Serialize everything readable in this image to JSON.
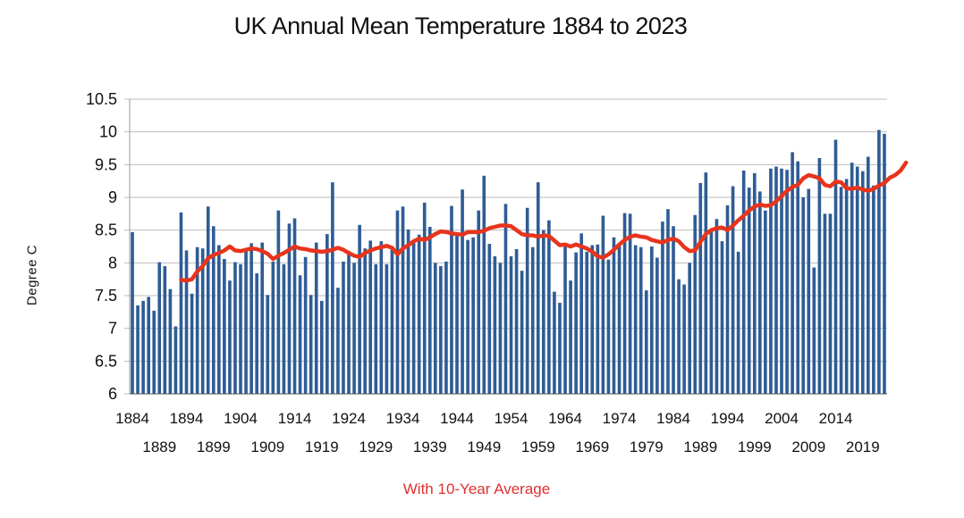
{
  "chart_data": {
    "type": "bar",
    "title": "UK Annual Mean Temperature 1884 to 2023",
    "ylabel": "Degree C",
    "caption": "With 10-Year Average",
    "ylim": [
      6,
      10.5
    ],
    "yticks": [
      "6",
      "6.5",
      "7",
      "7.5",
      "8",
      "8.5",
      "9",
      "9.5",
      "10",
      "10.5"
    ],
    "xtick_labels_row1": [
      "1884",
      "1894",
      "1904",
      "1914",
      "1924",
      "1934",
      "1944",
      "1954",
      "1964",
      "1974",
      "1984",
      "1994",
      "2004",
      "2014"
    ],
    "xtick_labels_row2": [
      "1889",
      "1899",
      "1909",
      "1919",
      "1929",
      "1939",
      "1949",
      "1959",
      "1969",
      "1979",
      "1989",
      "1999",
      "2009",
      "2019"
    ],
    "grid": true,
    "colors": {
      "bars": "#2F5C95",
      "average_line": "#E8341C",
      "grid": "#BDBDBD",
      "caption": "#E03030"
    },
    "series": [
      {
        "x_start": 1884,
        "x_end": 2023,
        "values": [
          8.47,
          7.35,
          7.42,
          7.48,
          7.27,
          8.01,
          7.95,
          7.6,
          7.03,
          8.77,
          8.19,
          7.53,
          8.24,
          8.22,
          8.86,
          8.56,
          8.27,
          8.06,
          7.73,
          8.01,
          7.98,
          8.22,
          8.3,
          7.84,
          8.31,
          7.51,
          8.02,
          8.8,
          7.98,
          8.6,
          8.68,
          7.81,
          8.09,
          7.51,
          8.31,
          7.42,
          8.44,
          9.23,
          7.62,
          8.02,
          8.18,
          8.0,
          8.58,
          8.22,
          8.34,
          7.98,
          8.33,
          7.98,
          8.2,
          8.8,
          8.86,
          8.51,
          8.31,
          8.43,
          8.92,
          8.55,
          8.0,
          7.95,
          8.02,
          8.87,
          8.42,
          9.12,
          8.35,
          8.39,
          8.8,
          9.33,
          8.29,
          8.1,
          8.0,
          8.9,
          8.1,
          8.21,
          7.88,
          8.84,
          8.24,
          9.23,
          8.5,
          8.65,
          7.56,
          7.39,
          8.25,
          7.73,
          8.16,
          8.45,
          8.17,
          8.27,
          8.28,
          8.72,
          8.05,
          8.39,
          8.26,
          8.76,
          8.75,
          8.27,
          8.24,
          7.58,
          8.25,
          8.08,
          8.63,
          8.82,
          8.56,
          7.75,
          7.67,
          8.0,
          8.73,
          9.22,
          9.38,
          8.51,
          8.67,
          8.33,
          8.88,
          9.17,
          8.17,
          9.41,
          9.15,
          9.37,
          9.09,
          8.8,
          9.44,
          9.47,
          9.44,
          9.42,
          9.69,
          9.55,
          9.0,
          9.13,
          7.93,
          9.6,
          8.75,
          8.75,
          9.88,
          9.16,
          9.28,
          9.53,
          9.47,
          9.4,
          9.62,
          9.18,
          10.03,
          9.97
        ]
      },
      {
        "name": "10-Year Average",
        "x_start": 1893,
        "x_end": 2023,
        "values": [
          7.74,
          7.73,
          7.75,
          7.87,
          7.95,
          8.07,
          8.12,
          8.15,
          8.19,
          8.25,
          8.19,
          8.18,
          8.2,
          8.22,
          8.21,
          8.18,
          8.14,
          8.06,
          8.11,
          8.15,
          8.2,
          8.25,
          8.22,
          8.21,
          8.19,
          8.18,
          8.17,
          8.18,
          8.2,
          8.23,
          8.2,
          8.15,
          8.11,
          8.09,
          8.15,
          8.19,
          8.22,
          8.24,
          8.26,
          8.23,
          8.13,
          8.22,
          8.27,
          8.33,
          8.37,
          8.35,
          8.39,
          8.44,
          8.48,
          8.47,
          8.45,
          8.44,
          8.43,
          8.47,
          8.47,
          8.47,
          8.49,
          8.53,
          8.55,
          8.57,
          8.57,
          8.56,
          8.5,
          8.44,
          8.42,
          8.42,
          8.4,
          8.42,
          8.41,
          8.34,
          8.27,
          8.28,
          8.25,
          8.28,
          8.25,
          8.22,
          8.17,
          8.1,
          8.08,
          8.13,
          8.2,
          8.28,
          8.35,
          8.4,
          8.42,
          8.4,
          8.39,
          8.35,
          8.33,
          8.31,
          8.35,
          8.37,
          8.33,
          8.24,
          8.18,
          8.19,
          8.32,
          8.44,
          8.5,
          8.53,
          8.54,
          8.5,
          8.57,
          8.65,
          8.72,
          8.8,
          8.86,
          8.89,
          8.87,
          8.88,
          8.94,
          9.02,
          9.1,
          9.16,
          9.19,
          9.29,
          9.34,
          9.32,
          9.29,
          9.19,
          9.17,
          9.24,
          9.23,
          9.14,
          9.13,
          9.15,
          9.12,
          9.1,
          9.13,
          9.18,
          9.22,
          9.3,
          9.34,
          9.41,
          9.53
        ]
      }
    ]
  }
}
